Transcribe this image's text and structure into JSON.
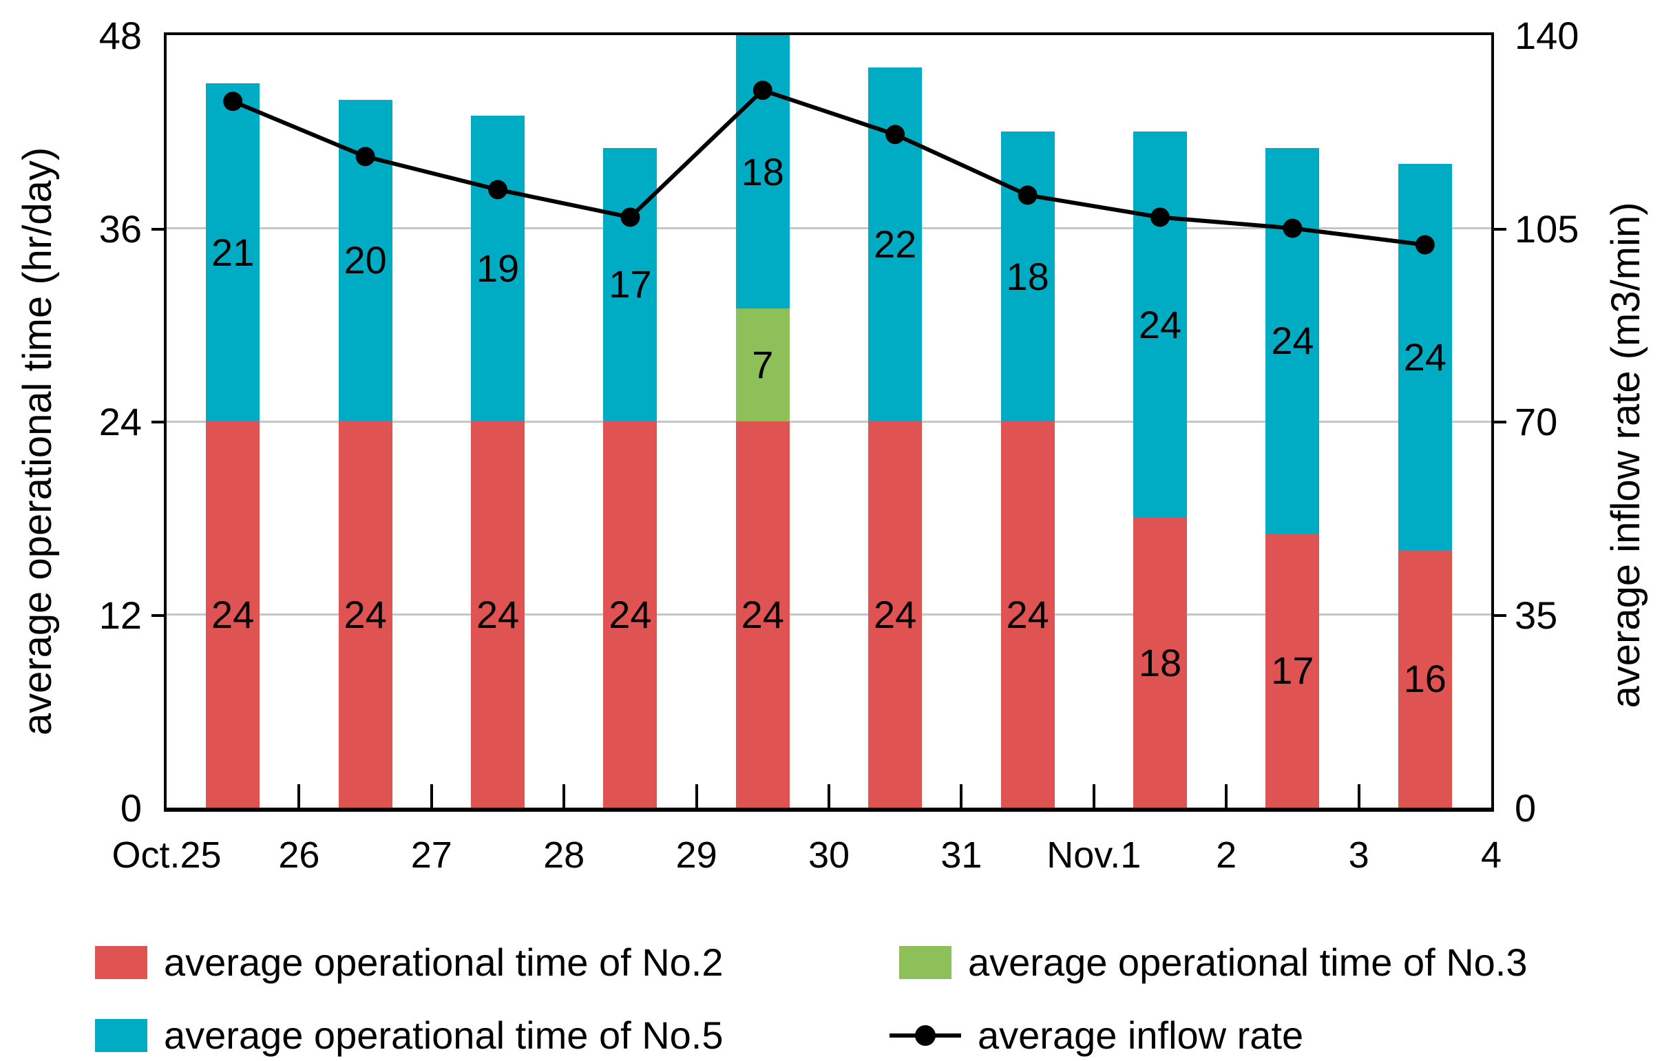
{
  "chart_data": {
    "type": "bar",
    "subtype": "stacked-bars-with-line-overlay",
    "categories": [
      "Oct.25",
      "Oct.26",
      "Oct.27",
      "Oct.28",
      "Oct.29",
      "Oct.30",
      "Oct.31",
      "Nov.1",
      "Nov.2",
      "Nov.3"
    ],
    "series": [
      {
        "name": "average operational time of No.2",
        "type": "bar",
        "axis": "left",
        "color": "#e05353",
        "values": [
          24,
          24,
          24,
          24,
          24,
          24,
          24,
          18,
          17,
          16
        ]
      },
      {
        "name": "average operational time of No.3",
        "type": "bar",
        "axis": "left",
        "color": "#8dc058",
        "values": [
          0,
          0,
          0,
          0,
          7,
          0,
          0,
          0,
          0,
          0
        ]
      },
      {
        "name": "average operational time of No.5",
        "type": "bar",
        "axis": "left",
        "color": "#00acc4",
        "values": [
          21,
          20,
          19,
          17,
          18,
          22,
          18,
          24,
          24,
          24
        ]
      },
      {
        "name": "average inflow rate",
        "type": "line",
        "axis": "right",
        "color": "#000000",
        "values": [
          128,
          118,
          112,
          107,
          130,
          122,
          111,
          107,
          105,
          102
        ]
      }
    ],
    "bar_totals": [
      45,
      44,
      43,
      41,
      49,
      46,
      42,
      42,
      41,
      40
    ],
    "left_axis": {
      "title": "average operational time (hr/day)",
      "ticks": [
        0,
        12,
        24,
        36,
        48
      ],
      "range": [
        0,
        48
      ]
    },
    "right_axis": {
      "title": "average inflow rate  (m3/min)",
      "ticks": [
        0,
        35,
        70,
        105,
        140
      ],
      "range": [
        0,
        140
      ]
    },
    "x_axis": {
      "tick_labels": [
        "Oct.25",
        "26",
        "27",
        "28",
        "29",
        "30",
        "31",
        "Nov.1",
        "2",
        "3",
        "4"
      ]
    },
    "layout": {
      "grid": true,
      "gridlines_at": [
        12,
        24,
        36
      ],
      "bar_clip_max": 48,
      "legend_position": "bottom"
    }
  },
  "legend": {
    "items": [
      {
        "label": "average operational time of No.2",
        "marker": "red-swatch"
      },
      {
        "label": "average operational time of No.3",
        "marker": "green-swatch"
      },
      {
        "label": "average operational time of No.5",
        "marker": "cyan-swatch"
      },
      {
        "label": "average inflow rate",
        "marker": "black-line-dot"
      }
    ]
  }
}
